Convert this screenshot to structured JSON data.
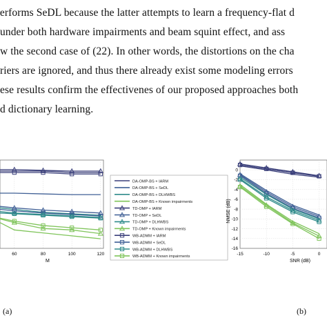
{
  "paragraph": {
    "lines": [
      "performs SeDL because the latter attempts to learn a frequency-flat d",
      "under both hardware impairments and beam squint effect, and ass",
      "w the second case of (22). In other words, the distortions on the cha",
      "riers are ignored, and thus there already exist some modeling errors",
      "ese results confirm the effectivenes of our proposed approaches both",
      "d dictionary learning."
    ]
  },
  "legend": {
    "entries": [
      {
        "label": "DA-OMP-BS + IARM",
        "color": "#3a3f7a",
        "marker": "none"
      },
      {
        "label": "DA-OMP-BS + SeDL",
        "color": "#3f5f95",
        "marker": "none"
      },
      {
        "label": "DA-OMP-BS + DLHWBS",
        "color": "#2e8a8a",
        "marker": "none"
      },
      {
        "label": "DA-OMP-BS + Known impairments",
        "color": "#7fc45a",
        "marker": "none"
      },
      {
        "label": "TD-OMP + IARM",
        "color": "#3a3f7a",
        "marker": "triangle"
      },
      {
        "label": "TD-OMP + SeDL",
        "color": "#3f5f95",
        "marker": "triangle"
      },
      {
        "label": "TD-OMP + DLHWBS",
        "color": "#2e8a8a",
        "marker": "triangle"
      },
      {
        "label": "TD-OMP + Known impairments",
        "color": "#7fc45a",
        "marker": "triangle"
      },
      {
        "label": "WB-ADMM + IARM",
        "color": "#3a3f7a",
        "marker": "square"
      },
      {
        "label": "WB-ADMM + SeDL",
        "color": "#3f5f95",
        "marker": "square"
      },
      {
        "label": "WB-ADMM + DLHWBS",
        "color": "#2e8a8a",
        "marker": "square"
      },
      {
        "label": "WB-ADMM + Known impairments",
        "color": "#7fc45a",
        "marker": "square"
      }
    ]
  },
  "captions": {
    "a": "(a)",
    "b": "(b)"
  },
  "chart_data": [
    {
      "type": "line",
      "xlabel": "M",
      "ylabel": "",
      "xlim": [
        50,
        122
      ],
      "x_ticks": [
        "60",
        "80",
        "100",
        "120"
      ],
      "x": [
        50,
        60,
        80,
        100,
        120
      ],
      "series": [
        {
          "name": "DA-OMP-BS + IARM",
          "color": "#3a3f7a",
          "marker": "none",
          "values": [
            0.6,
            0.6,
            0.6,
            0.58,
            0.58
          ]
        },
        {
          "name": "DA-OMP-BS + SeDL",
          "color": "#3f5f95",
          "marker": "none",
          "values": [
            0.3,
            0.3,
            0.29,
            0.28,
            0.28
          ]
        },
        {
          "name": "TD-OMP + IARM",
          "color": "#3a3f7a",
          "marker": "triangle",
          "values": [
            0.62,
            0.62,
            0.61,
            0.6,
            0.6
          ]
        },
        {
          "name": "WB-ADMM + IARM",
          "color": "#3a3f7a",
          "marker": "square",
          "values": [
            0.58,
            0.58,
            0.58,
            0.56,
            0.56
          ]
        },
        {
          "name": "DA-OMP-BS + DLHWBS",
          "color": "#2e8a8a",
          "marker": "none",
          "values": [
            0.1,
            0.08,
            0.04,
            0.02,
            0.0
          ]
        },
        {
          "name": "TD-OMP + SeDL",
          "color": "#3f5f95",
          "marker": "triangle",
          "values": [
            0.12,
            0.1,
            0.07,
            0.05,
            0.03
          ]
        },
        {
          "name": "TD-OMP + DLHWBS",
          "color": "#2e8a8a",
          "marker": "triangle",
          "values": [
            0.05,
            0.03,
            0.01,
            -0.01,
            -0.03
          ]
        },
        {
          "name": "WB-ADMM + SeDL",
          "color": "#3f5f95",
          "marker": "square",
          "values": [
            0.08,
            0.06,
            0.03,
            0.01,
            -0.01
          ]
        },
        {
          "name": "WB-ADMM + DLHWBS",
          "color": "#2e8a8a",
          "marker": "square",
          "values": [
            0.03,
            0.02,
            0.0,
            -0.02,
            -0.04
          ]
        },
        {
          "name": "TD-OMP + Known impairments",
          "color": "#7fc45a",
          "marker": "triangle",
          "values": [
            -0.05,
            -0.1,
            -0.18,
            -0.2,
            -0.25
          ]
        },
        {
          "name": "DA-OMP-BS + Known impairments",
          "color": "#7fc45a",
          "marker": "none",
          "values": [
            -0.1,
            -0.2,
            -0.24,
            -0.28,
            -0.32
          ]
        },
        {
          "name": "WB-ADMM + Known impairments",
          "color": "#7fc45a",
          "marker": "square",
          "values": [
            -0.04,
            -0.08,
            -0.14,
            -0.17,
            -0.2
          ]
        }
      ]
    },
    {
      "type": "line",
      "xlabel": "SNR (dB)",
      "ylabel": "NMSE (dB)",
      "xlim": [
        -15,
        0
      ],
      "ylim": [
        -16,
        2
      ],
      "x_ticks": [
        "-15",
        "-10",
        "-5",
        "0"
      ],
      "y_ticks": [
        "0",
        "-2",
        "-4",
        "-6",
        "-8",
        "-10",
        "-12",
        "-14",
        "-16"
      ],
      "x": [
        -15,
        -10,
        -5,
        0
      ],
      "series": [
        {
          "name": "TD-OMP + IARM",
          "color": "#3a3f7a",
          "marker": "triangle",
          "values": [
            1.2,
            0.4,
            -0.4,
            -1.2
          ]
        },
        {
          "name": "WB-ADMM + IARM",
          "color": "#3a3f7a",
          "marker": "square",
          "values": [
            1.0,
            0.2,
            -0.6,
            -1.3
          ]
        },
        {
          "name": "DA-OMP-BS + IARM",
          "color": "#3a3f7a",
          "marker": "none",
          "values": [
            0.8,
            0.0,
            -0.9,
            -1.5
          ]
        },
        {
          "name": "TD-OMP + SeDL",
          "color": "#3f5f95",
          "marker": "triangle",
          "values": [
            -1.0,
            -4.5,
            -7.5,
            -9.5
          ]
        },
        {
          "name": "DA-OMP-BS + SeDL",
          "color": "#3f5f95",
          "marker": "none",
          "values": [
            -0.8,
            -4.2,
            -7.2,
            -9.2
          ]
        },
        {
          "name": "WB-ADMM + SeDL",
          "color": "#3f5f95",
          "marker": "square",
          "values": [
            -1.2,
            -4.8,
            -7.8,
            -9.8
          ]
        },
        {
          "name": "DA-OMP-BS + DLHWBS",
          "color": "#2e8a8a",
          "marker": "none",
          "values": [
            -1.5,
            -5.0,
            -8.0,
            -10.0
          ]
        },
        {
          "name": "TD-OMP + DLHWBS",
          "color": "#2e8a8a",
          "marker": "triangle",
          "values": [
            -1.8,
            -5.5,
            -8.3,
            -10.3
          ]
        },
        {
          "name": "WB-ADMM + DLHWBS",
          "color": "#2e8a8a",
          "marker": "square",
          "values": [
            -2.0,
            -5.8,
            -8.6,
            -10.6
          ]
        },
        {
          "name": "DA-OMP-BS + Known impairments",
          "color": "#7fc45a",
          "marker": "none",
          "values": [
            -3.0,
            -7.0,
            -10.5,
            -13.0
          ]
        },
        {
          "name": "TD-OMP + Known impairments",
          "color": "#7fc45a",
          "marker": "triangle",
          "values": [
            -3.3,
            -7.2,
            -10.8,
            -13.5
          ]
        },
        {
          "name": "WB-ADMM + Known impairments",
          "color": "#7fc45a",
          "marker": "square",
          "values": [
            -3.5,
            -7.5,
            -11.0,
            -14.0
          ]
        }
      ]
    }
  ]
}
